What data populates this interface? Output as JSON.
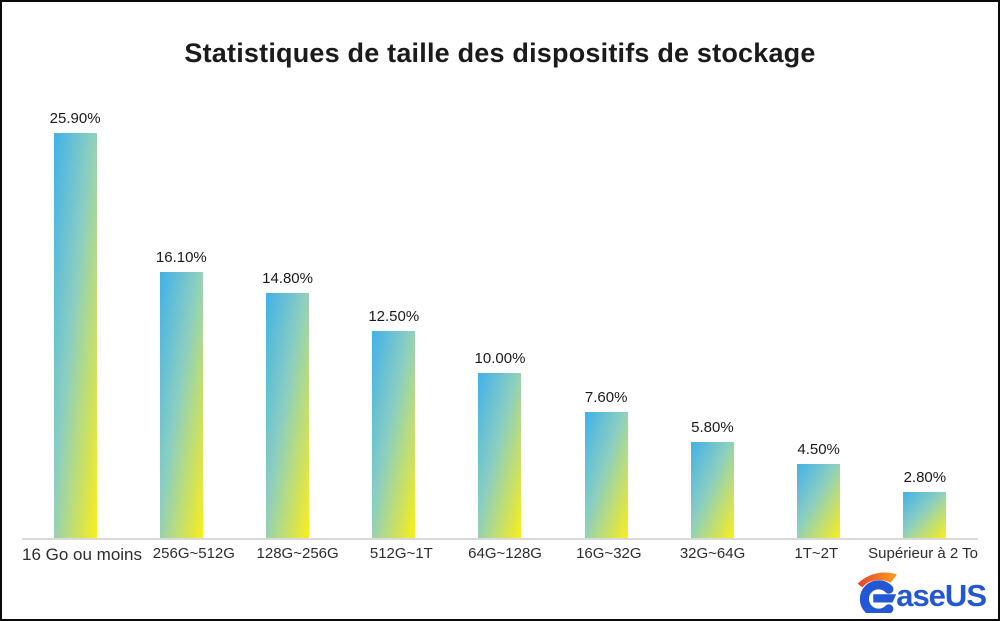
{
  "chart_data": {
    "type": "bar",
    "title": "Statistiques de taille des dispositifs de stockage",
    "categories": [
      "16 Go ou moins",
      "256G~512G",
      "128G~256G",
      "512G~1T",
      "64G~128G",
      "16G~32G",
      "32G~64G",
      "1T~2T",
      "Supérieur à 2 To"
    ],
    "values": [
      25.9,
      16.1,
      14.8,
      12.5,
      10.0,
      7.6,
      5.8,
      4.5,
      2.8
    ],
    "value_labels": [
      "25.90%",
      "16.10%",
      "14.80%",
      "12.50%",
      "10.00%",
      "7.60%",
      "5.80%",
      "4.50%",
      "2.80%"
    ],
    "xlabel": "",
    "ylabel": "",
    "ylim": [
      0,
      25.9
    ],
    "grid": false,
    "legend": null,
    "bar_gradient_top": "#41b1e8",
    "bar_gradient_bottom": "#fbee1b",
    "axis_line_color": "#d9d9d9"
  },
  "logo": {
    "wordmark": "aseUS",
    "glyph": "easeus-e-icon",
    "blue": "#2357d3",
    "orange_start": "#e8432b",
    "orange_end": "#f9a11b"
  }
}
